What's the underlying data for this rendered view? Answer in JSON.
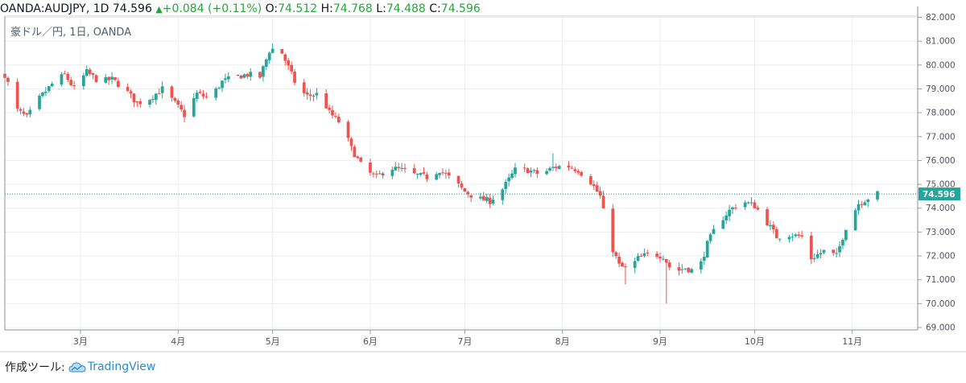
{
  "header": {
    "symbol": "OANDA:AUDJPY, 1D",
    "last": "74.596",
    "change": "+0.084 (+0.11%)",
    "o_label": "O:",
    "o_value": "74.512",
    "h_label": "H:",
    "h_value": "74.768",
    "l_label": "L:",
    "l_value": "74.488",
    "c_label": "C:",
    "c_value": "74.596",
    "up_color": "#26a63a"
  },
  "legend": "豪ドル／円, 1日, OANDA",
  "footer": {
    "made_with": "作成ツール:",
    "brand": "TradingView"
  },
  "chart_data": {
    "type": "candlestick",
    "title": "",
    "y_range": [
      68.9,
      82.05
    ],
    "y_ticks": [
      "69.000",
      "70.000",
      "71.000",
      "72.000",
      "73.000",
      "74.000",
      "75.000",
      "76.000",
      "77.000",
      "78.000",
      "79.000",
      "80.000",
      "81.000",
      "82.000"
    ],
    "y_tick_values": [
      69,
      70,
      71,
      72,
      73,
      74,
      75,
      76,
      77,
      78,
      79,
      80,
      81,
      82
    ],
    "x_range": [
      "2020-02-06",
      "2020-11-09"
    ],
    "x_ticks": [
      {
        "date": "2020-03-01",
        "label": "3月"
      },
      {
        "date": "2020-04-01",
        "label": "4月"
      },
      {
        "date": "2020-05-01",
        "label": "5月"
      },
      {
        "date": "2020-06-01",
        "label": "6月"
      },
      {
        "date": "2020-07-01",
        "label": "7月"
      },
      {
        "date": "2020-08-01",
        "label": "8月"
      },
      {
        "date": "2020-09-01",
        "label": "9月"
      },
      {
        "date": "2020-10-01",
        "label": "10月"
      },
      {
        "date": "2020-11-01",
        "label": "11月"
      }
    ],
    "last_price": 74.596,
    "last_price_label": "74.596",
    "up_color": "#26a69a",
    "down_color": "#ef5350",
    "grid": true,
    "close_path": [
      [
        "2020-02-06",
        79.6
      ],
      [
        "2020-02-10",
        78.1
      ],
      [
        "2020-02-13",
        77.8
      ],
      [
        "2020-02-17",
        78.6
      ],
      [
        "2020-02-21",
        79.2
      ],
      [
        "2020-02-25",
        79.6
      ],
      [
        "2020-02-28",
        79.0
      ],
      [
        "2020-03-03",
        79.7
      ],
      [
        "2020-03-07",
        79.3
      ],
      [
        "2020-03-11",
        79.4
      ],
      [
        "2020-03-15",
        79.0
      ],
      [
        "2020-03-19",
        78.4
      ],
      [
        "2020-03-23",
        78.6
      ],
      [
        "2020-03-27",
        79.0
      ],
      [
        "2020-03-31",
        78.4
      ],
      [
        "2020-04-03",
        77.9
      ],
      [
        "2020-04-07",
        78.8
      ],
      [
        "2020-04-11",
        78.6
      ],
      [
        "2020-04-15",
        79.3
      ],
      [
        "2020-04-19",
        79.5
      ],
      [
        "2020-04-23",
        79.6
      ],
      [
        "2020-04-27",
        79.5
      ],
      [
        "2020-04-30",
        80.6
      ],
      [
        "2020-05-03",
        80.8
      ],
      [
        "2020-05-06",
        79.9
      ],
      [
        "2020-05-09",
        79.0
      ],
      [
        "2020-05-12",
        78.7
      ],
      [
        "2020-05-16",
        78.8
      ],
      [
        "2020-05-19",
        78.0
      ],
      [
        "2020-05-23",
        77.5
      ],
      [
        "2020-05-26",
        76.5
      ],
      [
        "2020-05-30",
        75.6
      ],
      [
        "2020-06-03",
        75.3
      ],
      [
        "2020-06-07",
        75.7
      ],
      [
        "2020-06-11",
        75.6
      ],
      [
        "2020-06-15",
        75.4
      ],
      [
        "2020-06-19",
        75.3
      ],
      [
        "2020-06-23",
        75.6
      ],
      [
        "2020-06-27",
        75.2
      ],
      [
        "2020-07-01",
        74.7
      ],
      [
        "2020-07-05",
        74.4
      ],
      [
        "2020-07-09",
        74.3
      ],
      [
        "2020-07-13",
        74.8
      ],
      [
        "2020-07-17",
        75.6
      ],
      [
        "2020-07-21",
        75.6
      ],
      [
        "2020-07-25",
        75.4
      ],
      [
        "2020-07-29",
        75.7
      ],
      [
        "2020-08-02",
        75.8
      ],
      [
        "2020-08-06",
        75.6
      ],
      [
        "2020-08-10",
        75.1
      ],
      [
        "2020-08-13",
        74.5
      ],
      [
        "2020-08-16",
        72.6
      ],
      [
        "2020-08-19",
        71.6
      ],
      [
        "2020-08-22",
        71.4
      ],
      [
        "2020-08-25",
        71.9
      ],
      [
        "2020-08-29",
        72.1
      ],
      [
        "2020-09-02",
        72.0
      ],
      [
        "2020-09-05",
        71.3
      ],
      [
        "2020-09-09",
        71.5
      ],
      [
        "2020-09-13",
        71.3
      ],
      [
        "2020-09-16",
        72.5
      ],
      [
        "2020-09-19",
        73.3
      ],
      [
        "2020-09-23",
        73.9
      ],
      [
        "2020-09-27",
        74.3
      ],
      [
        "2020-10-01",
        74.1
      ],
      [
        "2020-10-04",
        73.6
      ],
      [
        "2020-10-08",
        72.8
      ],
      [
        "2020-10-12",
        72.9
      ],
      [
        "2020-10-16",
        72.8
      ],
      [
        "2020-10-19",
        71.9
      ],
      [
        "2020-10-23",
        72.2
      ],
      [
        "2020-10-27",
        72.0
      ],
      [
        "2020-10-30",
        73.2
      ],
      [
        "2020-11-03",
        74.2
      ],
      [
        "2020-11-07",
        74.5
      ],
      [
        "2020-11-09",
        74.6
      ]
    ],
    "spikes": [
      {
        "date": "2020-05-17",
        "high": 79.9
      },
      {
        "date": "2020-07-29",
        "high": 76.3
      },
      {
        "date": "2020-08-21",
        "low": 70.8
      },
      {
        "date": "2020-09-03",
        "low": 70.0
      }
    ]
  }
}
